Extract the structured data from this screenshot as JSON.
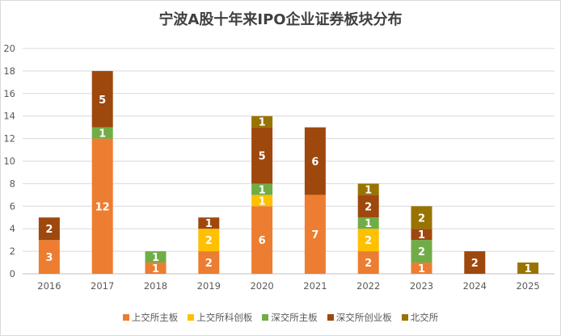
{
  "chart_data": {
    "type": "bar",
    "stacked": true,
    "title": "宁波A股十年来IPO企业证券板块分布",
    "categories": [
      "2016",
      "2017",
      "2018",
      "2019",
      "2020",
      "2021",
      "2022",
      "2023",
      "2024",
      "2025"
    ],
    "ylim": [
      0,
      20
    ],
    "yticks": [
      0,
      2,
      4,
      6,
      8,
      10,
      12,
      14,
      16,
      18,
      20
    ],
    "grid": true,
    "legend": "bottom",
    "series": [
      {
        "name": "上交所主板",
        "color": "#ED7D31",
        "values": [
          3,
          12,
          1,
          2,
          6,
          7,
          2,
          1,
          0,
          0
        ]
      },
      {
        "name": "上交所科创板",
        "color": "#FFC000",
        "values": [
          0,
          0,
          0,
          2,
          1,
          0,
          2,
          0,
          0,
          0
        ]
      },
      {
        "name": "深交所主板",
        "color": "#70AD47",
        "values": [
          0,
          1,
          1,
          0,
          1,
          0,
          1,
          2,
          0,
          0
        ]
      },
      {
        "name": "深交所创业板",
        "color": "#9E480E",
        "values": [
          2,
          5,
          0,
          1,
          5,
          6,
          2,
          1,
          2,
          0
        ]
      },
      {
        "name": "北交所",
        "color": "#997300",
        "values": [
          0,
          0,
          0,
          0,
          1,
          0,
          1,
          2,
          0,
          1
        ]
      }
    ]
  }
}
